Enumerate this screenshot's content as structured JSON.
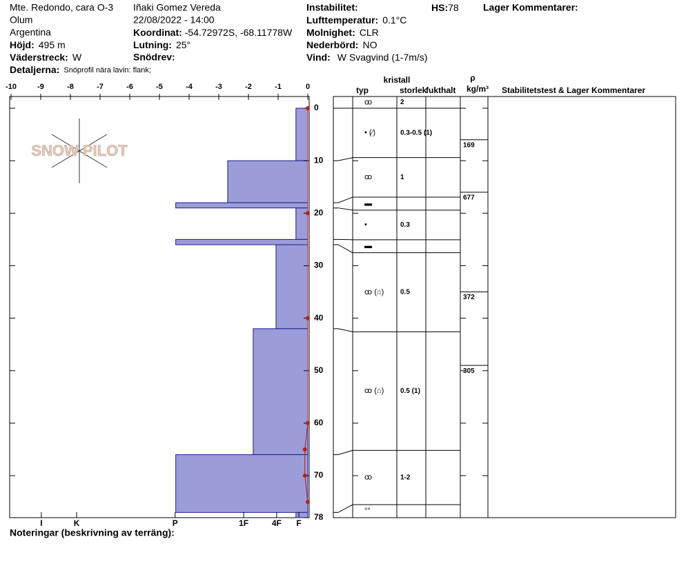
{
  "header": {
    "location": "Mte. Redondo, cara O-3",
    "region": "Olum",
    "country": "Argentina",
    "elevation_label": "Höjd:",
    "elevation": "495 m",
    "aspect_label": "Väderstreck:",
    "aspect": "W",
    "details_label": "Detaljerna:",
    "details": "Snöprofil nära lavin: flank;",
    "observer": "Iñaki Gomez Vereda",
    "datetime": "22/08/2022 - 14:00",
    "coord_label": "Koordinat:",
    "coord": "-54.72972S, -68.11778W",
    "slope_label": "Lutning:",
    "slope": "25°",
    "drift_label": "Snödrev:",
    "instability_label": "Instabilitet:",
    "airtemp_label": "Lufttemperatur:",
    "airtemp": "0.1°C",
    "sky_label": "Molnighet:",
    "sky": "CLR",
    "precip_label": "Nederbörd:",
    "precip": "NO",
    "wind_label": "Vind:",
    "wind": "W Svagvind (1-7m/s)",
    "hs_label": "HS:",
    "hs": 78,
    "layer_comments_label": "Lager Kommentarer:"
  },
  "logo": "SNOW PILOT",
  "notes_label": "Noteringar (beskrivning av terräng):",
  "layers_table": {
    "headers": {
      "crystal": "kristall",
      "type": "typ",
      "size": "storlek",
      "moisture": "fukthalt",
      "rho": "ρ",
      "density_unit": "kg/m³",
      "comments": "Stabilitetstest & Lager Kommentarer"
    },
    "rows": [
      {
        "grain": "ꝏ",
        "size": "2"
      },
      {
        "grain": "• (⁄)",
        "size": "0.3-0.5 (1)"
      },
      {
        "grain": "ꝏ",
        "size": "1"
      },
      {
        "grain": "▬"
      },
      {
        "grain": "•",
        "size": "0.3"
      },
      {
        "grain": "▬"
      },
      {
        "grain": "ꝏ (⌂)",
        "size": "0.5"
      },
      {
        "grain": "ꝏ (⌂)",
        "size": "0.5 (1)"
      },
      {
        "grain": "ꝏ",
        "size": "1-2"
      },
      {
        "grain": "°°"
      }
    ]
  },
  "chart_data": {
    "type": "snowprofile",
    "temperature": {
      "xlim": [
        -10,
        0
      ],
      "xticks": [
        -10,
        -9,
        -8,
        -7,
        -6,
        -5,
        -4,
        -3,
        -2,
        -1,
        0
      ],
      "ylim": [
        0,
        78
      ],
      "yticks": [
        0,
        10,
        20,
        30,
        40,
        50,
        60,
        70,
        78
      ],
      "depths": [
        0,
        20,
        40,
        60,
        65,
        70,
        75
      ],
      "values": [
        0,
        0,
        0,
        0,
        -0.1,
        -0.1,
        0
      ],
      "color": "#b22222"
    },
    "hardness": {
      "xlim": [
        10,
        0
      ],
      "xticks": [
        {
          "value": 8.98,
          "label": "I"
        },
        {
          "value": 7.79,
          "label": "K"
        },
        {
          "value": 4.47,
          "label": "P"
        },
        {
          "value": 2.16,
          "label": "1F"
        },
        {
          "value": 1.05,
          "label": "4F"
        },
        {
          "value": 0.3,
          "label": "F"
        }
      ],
      "tops": [
        0,
        10,
        18,
        19,
        25,
        26,
        42,
        66,
        77
      ],
      "bottoms": [
        10,
        18,
        19,
        25,
        26,
        42,
        66,
        77,
        78
      ],
      "values": [
        0.4,
        2.7,
        4.45,
        0.4,
        4.45,
        1.07,
        1.84,
        4.45,
        0.4
      ],
      "color": "#9c9cd8"
    },
    "density": {
      "depths": [
        6,
        16,
        35,
        49
      ],
      "values": [
        169,
        677,
        372,
        305
      ]
    }
  }
}
